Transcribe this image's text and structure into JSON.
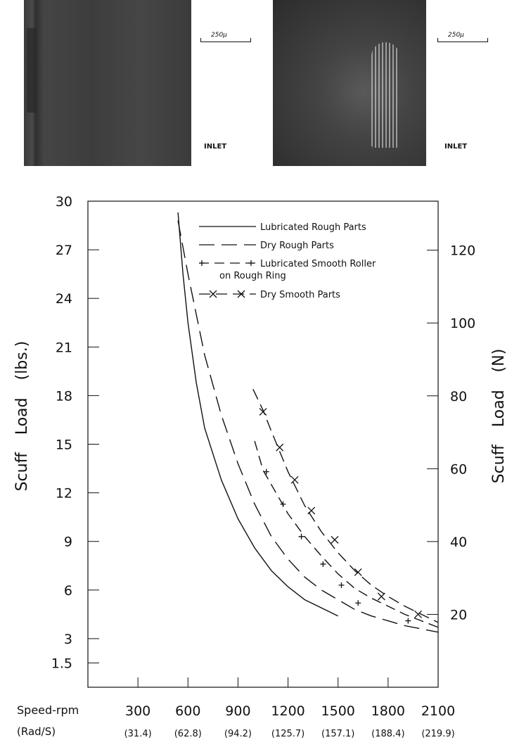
{
  "photos": {
    "left": {
      "scale_label": "250μ",
      "label": "INLET"
    },
    "right": {
      "scale_label": "250μ",
      "label": "INLET"
    }
  },
  "chart_data": {
    "type": "line",
    "xlabel": "Speed-rpm",
    "x2label": "(Rad/S)",
    "ylabel": "Scuff Load (lbs.)",
    "y2label": "Scuff Load (N)",
    "xlim": [
      0,
      2100
    ],
    "ylim": [
      0,
      30
    ],
    "x_ticks": [
      300,
      600,
      900,
      1200,
      1500,
      1800,
      2100
    ],
    "x_tick_labels": [
      "300",
      "600",
      "900",
      "1200",
      "1500",
      "1800",
      "2100"
    ],
    "x2_tick_labels": [
      "(31.4)",
      "(62.8)",
      "(94.2)",
      "(125.7)",
      "(157.1)",
      "(188.4)",
      "(219.9)"
    ],
    "y_ticks": [
      1.5,
      3,
      6,
      9,
      12,
      15,
      18,
      21,
      24,
      27,
      30
    ],
    "y_tick_labels": [
      "1.5",
      "3",
      "6",
      "9",
      "12",
      "15",
      "18",
      "21",
      "24",
      "27",
      "30"
    ],
    "y2_ticks": [
      20,
      40,
      60,
      80,
      100,
      120
    ],
    "y2_tick_labels": [
      "20",
      "40",
      "60",
      "80",
      "100",
      "120"
    ],
    "grid": false,
    "legend": "top-right",
    "series": [
      {
        "name": "Lubricated Rough Parts",
        "style": "solid",
        "x": [
          540,
          570,
          600,
          650,
          700,
          800,
          900,
          1000,
          1100,
          1200,
          1300,
          1400,
          1500
        ],
        "y": [
          29.3,
          25.5,
          22.5,
          18.8,
          16.0,
          12.8,
          10.4,
          8.6,
          7.2,
          6.2,
          5.4,
          4.9,
          4.4
        ]
      },
      {
        "name": "Dry Rough Parts",
        "style": "dashed",
        "x": [
          540,
          600,
          700,
          800,
          900,
          1000,
          1100,
          1200,
          1300,
          1400,
          1500,
          1600,
          1700,
          1800,
          1900,
          2000,
          2100
        ],
        "y": [
          28.8,
          25.5,
          20.5,
          16.8,
          13.8,
          11.3,
          9.3,
          7.9,
          6.8,
          6.0,
          5.4,
          4.8,
          4.4,
          4.1,
          3.8,
          3.6,
          3.4
        ]
      },
      {
        "name": "Lubricated Smooth Roller on Rough Ring",
        "style": "dash-plus",
        "x": [
          1000,
          1050,
          1100,
          1200,
          1300,
          1400,
          1500,
          1600,
          1700,
          1800,
          1900,
          2000,
          2100
        ],
        "y": [
          15.2,
          13.4,
          12.5,
          10.7,
          9.3,
          8.1,
          7.0,
          6.1,
          5.5,
          5.0,
          4.5,
          4.1,
          3.7
        ]
      },
      {
        "name": "Dry Smooth Parts",
        "style": "dash-cross",
        "x": [
          990,
          1050,
          1100,
          1200,
          1300,
          1400,
          1500,
          1600,
          1700,
          1800,
          1900,
          2000,
          2100
        ],
        "y": [
          18.4,
          17.1,
          15.8,
          13.3,
          11.2,
          9.6,
          8.3,
          7.2,
          6.3,
          5.6,
          5.0,
          4.5,
          4.0
        ]
      }
    ],
    "plus_markers": {
      "x": [
        1070,
        1170,
        1280,
        1410,
        1520,
        1620,
        1920
      ],
      "y": [
        13.3,
        11.3,
        9.3,
        7.6,
        6.3,
        5.2,
        4.1
      ]
    },
    "cross_markers": {
      "x": [
        1050,
        1150,
        1240,
        1340,
        1480,
        1620,
        1760,
        1980
      ],
      "y": [
        17.0,
        14.8,
        12.8,
        10.9,
        9.1,
        7.1,
        5.6,
        4.5
      ]
    },
    "legend_entries": [
      {
        "label": "Lubricated Rough Parts",
        "label2": ""
      },
      {
        "label": "Dry Rough Parts",
        "label2": ""
      },
      {
        "label": "Lubricated Smooth Roller",
        "label2": "on Rough Ring"
      },
      {
        "label": "Dry Smooth Parts",
        "label2": ""
      }
    ]
  }
}
